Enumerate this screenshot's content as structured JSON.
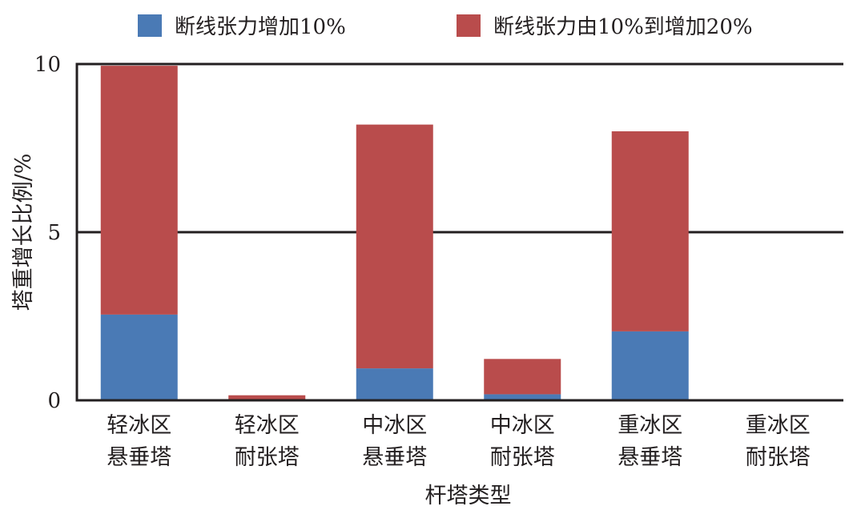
{
  "chart_data": {
    "type": "bar",
    "stacked": true,
    "categories": [
      [
        "轻冰区",
        "悬垂塔"
      ],
      [
        "轻冰区",
        "耐张塔"
      ],
      [
        "中冰区",
        "悬垂塔"
      ],
      [
        "中冰区",
        "耐张塔"
      ],
      [
        "重冰区",
        "悬垂塔"
      ],
      [
        "重冰区",
        "耐张塔"
      ]
    ],
    "series": [
      {
        "name": "断线张力增加10%",
        "color": "#4a7ab5",
        "values": [
          2.55,
          0.0,
          0.95,
          0.18,
          2.05,
          0.0
        ]
      },
      {
        "name": "断线张力由10%到增加20%",
        "color": "#b94c4c",
        "values": [
          7.4,
          0.15,
          7.25,
          1.05,
          5.95,
          0.0
        ]
      }
    ],
    "xlabel": "杆塔类型",
    "ylabel": "塔重增长比例/%",
    "ylim": [
      0,
      10
    ],
    "yticks": [
      0,
      5,
      10
    ],
    "grid": true,
    "legend_position": "top"
  }
}
